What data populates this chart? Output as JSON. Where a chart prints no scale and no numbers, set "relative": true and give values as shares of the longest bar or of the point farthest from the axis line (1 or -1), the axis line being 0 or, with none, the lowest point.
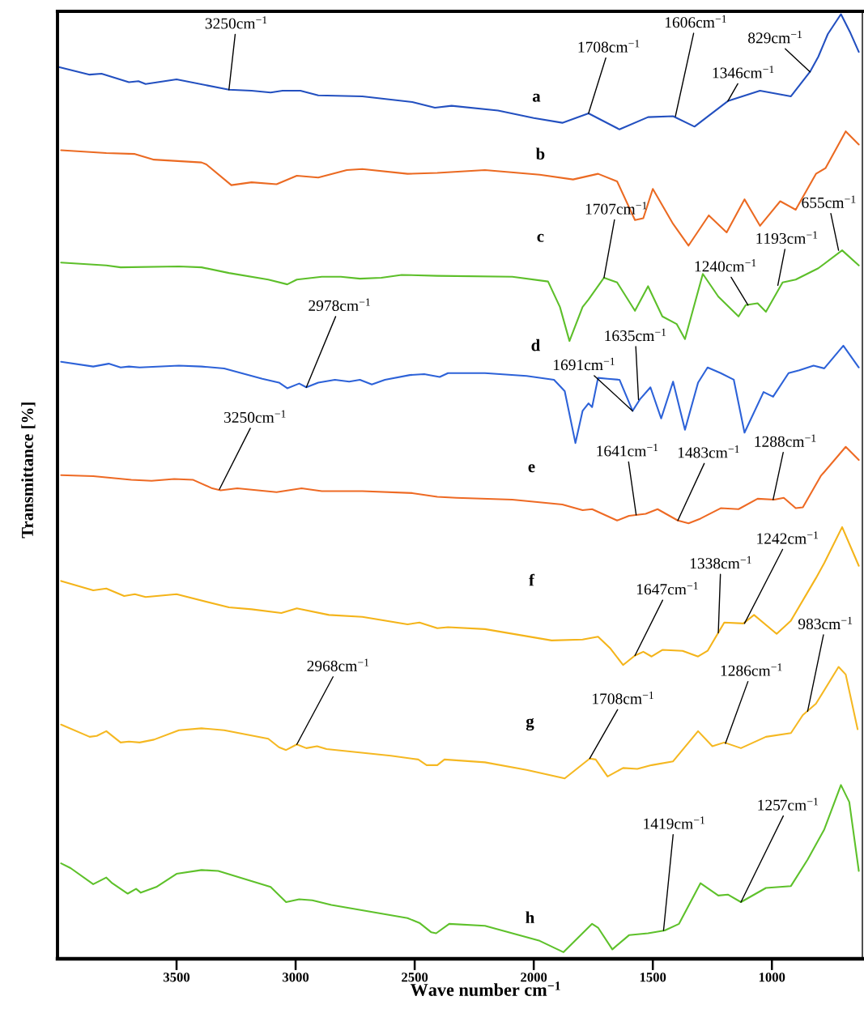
{
  "chart_data": {
    "type": "line",
    "relative": true,
    "xlabel": "Wave number cm$^{−1}$",
    "ylabel": "Transmittance [%]",
    "xlim": [
      4000,
      620
    ],
    "xticks": [
      3500,
      3000,
      2500,
      2000,
      1500,
      1000
    ],
    "tick_labels": "x",
    "legend": false,
    "grid": false,
    "series": [
      {
        "name": "a",
        "color": "#2350c0",
        "x": [
          3995,
          3865,
          3815,
          3700,
          3660,
          3630,
          3500,
          3280,
          3185,
          3105,
          3055,
          2980,
          2905,
          2720,
          2510,
          2415,
          2345,
          2150,
          2000,
          1880,
          1770,
          1640,
          1520,
          1415,
          1325,
          1185,
          1050,
          920,
          840,
          805,
          765,
          710,
          670,
          635
        ],
        "values": [
          0.944,
          0.936,
          0.937,
          0.928,
          0.929,
          0.926,
          0.931,
          0.92,
          0.919,
          0.917,
          0.919,
          0.919,
          0.914,
          0.913,
          0.907,
          0.901,
          0.903,
          0.898,
          0.89,
          0.885,
          0.895,
          0.878,
          0.891,
          0.892,
          0.881,
          0.908,
          0.919,
          0.913,
          0.939,
          0.955,
          0.979,
          1.0,
          0.98,
          0.96
        ]
      },
      {
        "name": "b",
        "color": "#eb6a22",
        "x": [
          3985,
          3795,
          3675,
          3595,
          3395,
          3375,
          3270,
          3185,
          3080,
          2995,
          2905,
          2785,
          2720,
          2530,
          2405,
          2205,
          1975,
          1835,
          1730,
          1650,
          1575,
          1540,
          1500,
          1415,
          1350,
          1265,
          1190,
          1115,
          1050,
          965,
          900,
          815,
          775,
          690,
          635
        ],
        "values": [
          0.856,
          0.853,
          0.852,
          0.846,
          0.843,
          0.841,
          0.819,
          0.822,
          0.82,
          0.829,
          0.827,
          0.835,
          0.836,
          0.831,
          0.832,
          0.835,
          0.83,
          0.825,
          0.831,
          0.823,
          0.782,
          0.784,
          0.815,
          0.778,
          0.755,
          0.787,
          0.769,
          0.804,
          0.776,
          0.802,
          0.793,
          0.831,
          0.837,
          0.876,
          0.862
        ]
      },
      {
        "name": "c",
        "color": "#5dbf2a",
        "x": [
          3985,
          3795,
          3735,
          3490,
          3395,
          3280,
          3115,
          3035,
          2995,
          2890,
          2810,
          2730,
          2640,
          2555,
          2405,
          2090,
          1940,
          1890,
          1850,
          1795,
          1770,
          1705,
          1650,
          1575,
          1520,
          1460,
          1400,
          1365,
          1290,
          1225,
          1140,
          1110,
          1060,
          1025,
          955,
          900,
          805,
          705,
          635
        ],
        "values": [
          0.737,
          0.734,
          0.732,
          0.733,
          0.732,
          0.726,
          0.719,
          0.714,
          0.719,
          0.722,
          0.722,
          0.72,
          0.721,
          0.724,
          0.723,
          0.722,
          0.717,
          0.69,
          0.654,
          0.69,
          0.698,
          0.721,
          0.716,
          0.686,
          0.712,
          0.68,
          0.672,
          0.656,
          0.725,
          0.701,
          0.68,
          0.692,
          0.694,
          0.685,
          0.716,
          0.719,
          0.731,
          0.75,
          0.734
        ]
      },
      {
        "name": "d",
        "color": "#2d62d8",
        "x": [
          3985,
          3850,
          3785,
          3735,
          3700,
          3655,
          3490,
          3395,
          3300,
          3140,
          3070,
          3035,
          2985,
          2955,
          2905,
          2835,
          2775,
          2730,
          2680,
          2625,
          2520,
          2460,
          2395,
          2360,
          2205,
          2030,
          1915,
          1870,
          1825,
          1795,
          1770,
          1755,
          1730,
          1690,
          1640,
          1585,
          1555,
          1510,
          1465,
          1415,
          1365,
          1310,
          1270,
          1215,
          1160,
          1115,
          1035,
          995,
          930,
          885,
          825,
          780,
          700,
          635
        ],
        "values": [
          0.632,
          0.627,
          0.63,
          0.626,
          0.627,
          0.626,
          0.628,
          0.627,
          0.625,
          0.614,
          0.61,
          0.604,
          0.609,
          0.605,
          0.61,
          0.613,
          0.611,
          0.613,
          0.608,
          0.613,
          0.618,
          0.619,
          0.616,
          0.62,
          0.62,
          0.617,
          0.613,
          0.601,
          0.546,
          0.58,
          0.588,
          0.584,
          0.615,
          0.614,
          0.613,
          0.58,
          0.592,
          0.605,
          0.572,
          0.611,
          0.56,
          0.61,
          0.626,
          0.62,
          0.613,
          0.557,
          0.6,
          0.595,
          0.62,
          0.623,
          0.628,
          0.625,
          0.649,
          0.626
        ]
      },
      {
        "name": "e",
        "color": "#ee6a24",
        "x": [
          3985,
          3850,
          3690,
          3605,
          3510,
          3430,
          3350,
          3315,
          3245,
          3080,
          2975,
          2890,
          2720,
          2510,
          2405,
          2325,
          2090,
          1880,
          1795,
          1755,
          1650,
          1600,
          1530,
          1480,
          1395,
          1350,
          1300,
          1215,
          1140,
          1060,
          990,
          950,
          900,
          870,
          795,
          690,
          635
        ],
        "values": [
          0.512,
          0.511,
          0.507,
          0.506,
          0.508,
          0.507,
          0.498,
          0.496,
          0.498,
          0.494,
          0.498,
          0.495,
          0.495,
          0.493,
          0.489,
          0.488,
          0.486,
          0.481,
          0.475,
          0.476,
          0.464,
          0.469,
          0.471,
          0.476,
          0.464,
          0.461,
          0.466,
          0.477,
          0.476,
          0.487,
          0.486,
          0.488,
          0.477,
          0.478,
          0.511,
          0.542,
          0.528
        ]
      },
      {
        "name": "f",
        "color": "#f4b41a",
        "x": [
          3985,
          3850,
          3795,
          3720,
          3675,
          3630,
          3500,
          3280,
          3185,
          3060,
          2995,
          2860,
          2720,
          2530,
          2480,
          2405,
          2360,
          2205,
          1925,
          1795,
          1730,
          1680,
          1625,
          1575,
          1540,
          1505,
          1460,
          1375,
          1310,
          1270,
          1200,
          1120,
          1075,
          980,
          920,
          815,
          780,
          705,
          635
        ],
        "values": [
          0.4,
          0.39,
          0.392,
          0.384,
          0.386,
          0.383,
          0.386,
          0.372,
          0.37,
          0.366,
          0.371,
          0.364,
          0.362,
          0.354,
          0.356,
          0.35,
          0.351,
          0.349,
          0.337,
          0.338,
          0.341,
          0.329,
          0.311,
          0.321,
          0.325,
          0.32,
          0.327,
          0.326,
          0.32,
          0.326,
          0.356,
          0.355,
          0.364,
          0.344,
          0.358,
          0.403,
          0.419,
          0.457,
          0.416
        ]
      },
      {
        "name": "g",
        "color": "#f5b822",
        "x": [
          3985,
          3865,
          3835,
          3795,
          3735,
          3700,
          3655,
          3595,
          3490,
          3395,
          3300,
          3115,
          3070,
          3040,
          2995,
          2955,
          2910,
          2870,
          2600,
          2485,
          2450,
          2405,
          2375,
          2205,
          2030,
          1870,
          1765,
          1740,
          1690,
          1625,
          1565,
          1505,
          1415,
          1310,
          1250,
          1200,
          1130,
          1025,
          920,
          870,
          815,
          720,
          690,
          640
        ],
        "values": [
          0.248,
          0.235,
          0.236,
          0.241,
          0.229,
          0.23,
          0.229,
          0.232,
          0.242,
          0.244,
          0.242,
          0.233,
          0.224,
          0.221,
          0.227,
          0.223,
          0.225,
          0.222,
          0.215,
          0.211,
          0.205,
          0.205,
          0.211,
          0.208,
          0.2,
          0.191,
          0.212,
          0.211,
          0.193,
          0.202,
          0.201,
          0.205,
          0.209,
          0.241,
          0.225,
          0.229,
          0.223,
          0.235,
          0.239,
          0.258,
          0.27,
          0.309,
          0.301,
          0.243
        ]
      },
      {
        "name": "h",
        "color": "#5ec12b",
        "x": [
          3985,
          3945,
          3850,
          3795,
          3770,
          3705,
          3670,
          3650,
          3585,
          3500,
          3395,
          3325,
          3105,
          3040,
          2985,
          2930,
          2850,
          2530,
          2480,
          2430,
          2410,
          2355,
          2205,
          1975,
          1875,
          1755,
          1730,
          1670,
          1600,
          1520,
          1450,
          1390,
          1300,
          1225,
          1185,
          1130,
          1025,
          920,
          850,
          780,
          710,
          675,
          635
        ],
        "values": [
          0.101,
          0.096,
          0.079,
          0.086,
          0.08,
          0.069,
          0.074,
          0.07,
          0.076,
          0.09,
          0.094,
          0.093,
          0.076,
          0.06,
          0.063,
          0.062,
          0.057,
          0.043,
          0.038,
          0.028,
          0.027,
          0.037,
          0.035,
          0.019,
          0.007,
          0.037,
          0.033,
          0.01,
          0.025,
          0.027,
          0.03,
          0.037,
          0.08,
          0.067,
          0.068,
          0.06,
          0.075,
          0.077,
          0.105,
          0.137,
          0.184,
          0.166,
          0.093
        ]
      }
    ],
    "annotations": [
      {
        "text": "3250cm$^{−1}$",
        "x": 3280,
        "y": 0.92
      },
      {
        "text": "1708cm$^{−1}$",
        "x": 1770,
        "y": 0.895
      },
      {
        "text": "1606cm$^{−1}$",
        "x": 1405,
        "y": 0.892
      },
      {
        "text": "1346cm$^{−1}$",
        "x": 1185,
        "y": 0.908
      },
      {
        "text": "829cm$^{−1}$",
        "x": 840,
        "y": 0.939
      },
      {
        "text": "1707cm$^{−1}$",
        "x": 1705,
        "y": 0.721
      },
      {
        "text": "1240cm$^{−1}$",
        "x": 1100,
        "y": 0.692
      },
      {
        "text": "1193cm$^{−1}$",
        "x": 975,
        "y": 0.713
      },
      {
        "text": "655cm$^{−1}$",
        "x": 720,
        "y": 0.75
      },
      {
        "text": "2978cm$^{−1}$",
        "x": 2955,
        "y": 0.605
      },
      {
        "text": "1635cm$^{−1}$",
        "x": 1560,
        "y": 0.592
      },
      {
        "text": "1691cm$^{−1}$",
        "x": 1585,
        "y": 0.58
      },
      {
        "text": "3250cm$^{−1}$",
        "x": 3320,
        "y": 0.497
      },
      {
        "text": "1641cm$^{−1}$",
        "x": 1570,
        "y": 0.47
      },
      {
        "text": "1483cm$^{−1}$",
        "x": 1395,
        "y": 0.464
      },
      {
        "text": "1288cm$^{−1}$",
        "x": 995,
        "y": 0.486
      },
      {
        "text": "1647cm$^{−1}$",
        "x": 1575,
        "y": 0.321
      },
      {
        "text": "1338cm$^{−1}$",
        "x": 1225,
        "y": 0.345
      },
      {
        "text": "1242cm$^{−1}$",
        "x": 1115,
        "y": 0.355
      },
      {
        "text": "2968cm$^{−1}$",
        "x": 2995,
        "y": 0.227
      },
      {
        "text": "1708cm$^{−1}$",
        "x": 1765,
        "y": 0.212
      },
      {
        "text": "1286cm$^{−1}$",
        "x": 1195,
        "y": 0.228
      },
      {
        "text": "983cm$^{−1}$",
        "x": 850,
        "y": 0.262
      },
      {
        "text": "1419cm$^{−1}$",
        "x": 1455,
        "y": 0.03
      },
      {
        "text": "1257cm$^{−1}$",
        "x": 1130,
        "y": 0.06
      }
    ]
  }
}
